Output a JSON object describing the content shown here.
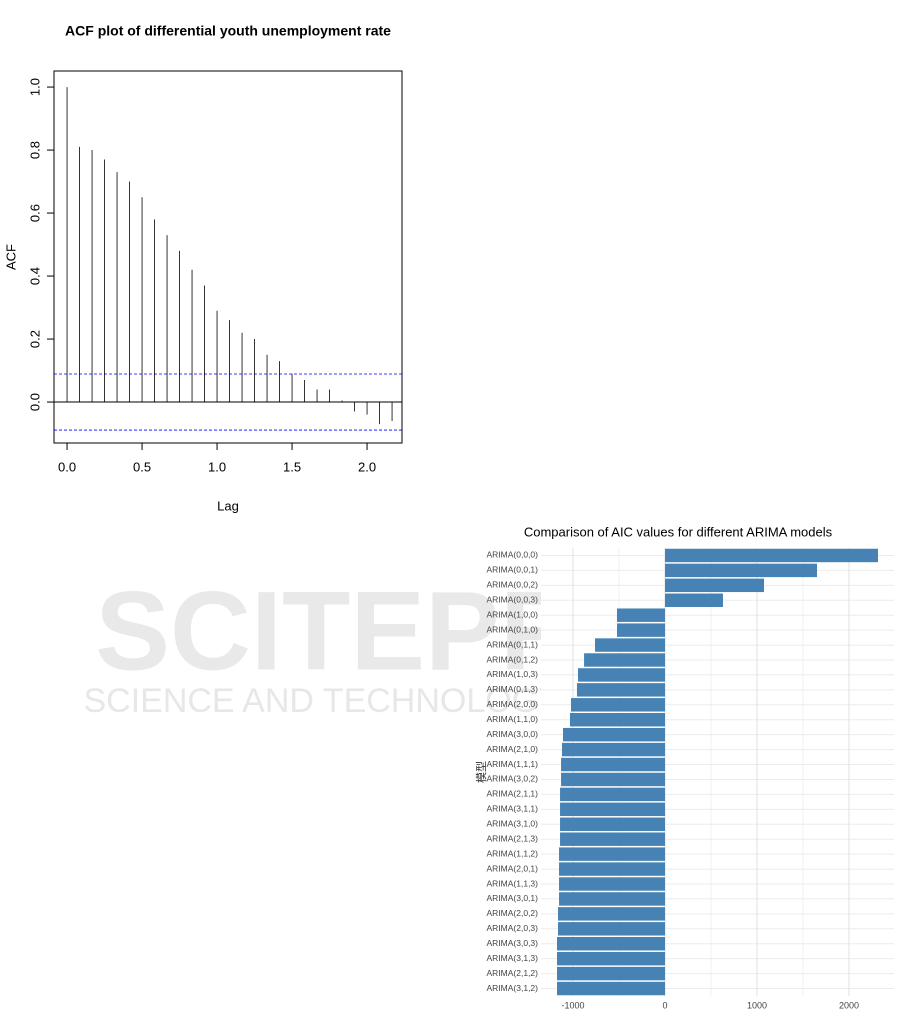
{
  "chart_data": [
    {
      "type": "stem",
      "title": "ACF plot of differential youth unemployment rate",
      "xlabel": "Lag",
      "ylabel": "ACF",
      "x": [
        0,
        0.0833,
        0.1667,
        0.25,
        0.3333,
        0.4167,
        0.5,
        0.5833,
        0.6667,
        0.75,
        0.8333,
        0.9167,
        1,
        1.0833,
        1.1667,
        1.25,
        1.3333,
        1.4167,
        1.5,
        1.5833,
        1.6667,
        1.75,
        1.8333,
        1.9167,
        2,
        2.0833,
        2.1667
      ],
      "values": [
        1.0,
        0.81,
        0.8,
        0.77,
        0.73,
        0.7,
        0.65,
        0.58,
        0.53,
        0.48,
        0.42,
        0.37,
        0.29,
        0.26,
        0.22,
        0.2,
        0.15,
        0.13,
        0.09,
        0.07,
        0.04,
        0.04,
        0.005,
        -0.03,
        -0.04,
        -0.07,
        -0.06
      ],
      "color": "#000000",
      "conf_bounds": [
        0.089,
        -0.089
      ],
      "conf_color": "#0000ff",
      "xlim": [
        -0.087,
        2.233
      ],
      "ylim": [
        -0.13,
        1.051
      ],
      "xticks": [
        {
          "value": 0,
          "label": "0.0"
        },
        0.5,
        {
          "value": 1,
          "label": "1.0"
        },
        1.5,
        {
          "value": 2,
          "label": "2.0"
        }
      ],
      "yticks": [
        {
          "value": 0,
          "label": "0.0"
        },
        0.2,
        0.4,
        0.6,
        0.8,
        {
          "value": 1,
          "label": "1.0"
        }
      ]
    },
    {
      "type": "bar",
      "orientation": "horizontal",
      "title": "Comparison of AIC values for different ARIMA models",
      "ylabel": "模型",
      "categories": [
        "ARIMA(0,0,0)",
        "ARIMA(0,0,1)",
        "ARIMA(0,0,2)",
        "ARIMA(0,0,3)",
        "ARIMA(1,0,0)",
        "ARIMA(0,1,0)",
        "ARIMA(0,1,1)",
        "ARIMA(0,1,2)",
        "ARIMA(1,0,3)",
        "ARIMA(0,1,3)",
        "ARIMA(2,0,0)",
        "ARIMA(1,1,0)",
        "ARIMA(3,0,0)",
        "ARIMA(2,1,0)",
        "ARIMA(1,1,1)",
        "ARIMA(3,0,2)",
        "ARIMA(2,1,1)",
        "ARIMA(3,1,1)",
        "ARIMA(3,1,0)",
        "ARIMA(2,1,3)",
        "ARIMA(1,1,2)",
        "ARIMA(2,0,1)",
        "ARIMA(1,1,3)",
        "ARIMA(3,0,1)",
        "ARIMA(2,0,2)",
        "ARIMA(2,0,3)",
        "ARIMA(3,0,3)",
        "ARIMA(3,1,3)",
        "ARIMA(2,1,2)",
        "ARIMA(3,1,2)"
      ],
      "values": [
        2315,
        1652,
        1076,
        630,
        -522,
        -522,
        -761,
        -880,
        -946,
        -957,
        -1022,
        -1033,
        -1109,
        -1120,
        -1130,
        -1130,
        -1141,
        -1141,
        -1141,
        -1141,
        -1152,
        -1152,
        -1152,
        -1152,
        -1163,
        -1163,
        -1174,
        -1174,
        -1174,
        -1174
      ],
      "color": "#4682b4",
      "xlim": [
        -1348,
        2489
      ],
      "xticks": [
        -1000,
        0,
        1000,
        2000
      ],
      "grid": true
    }
  ],
  "watermark": {
    "text": "SCITEPRESS",
    "subtitle": "SCIENCE AND TECHNOLOGY PUBLICATIONS"
  }
}
